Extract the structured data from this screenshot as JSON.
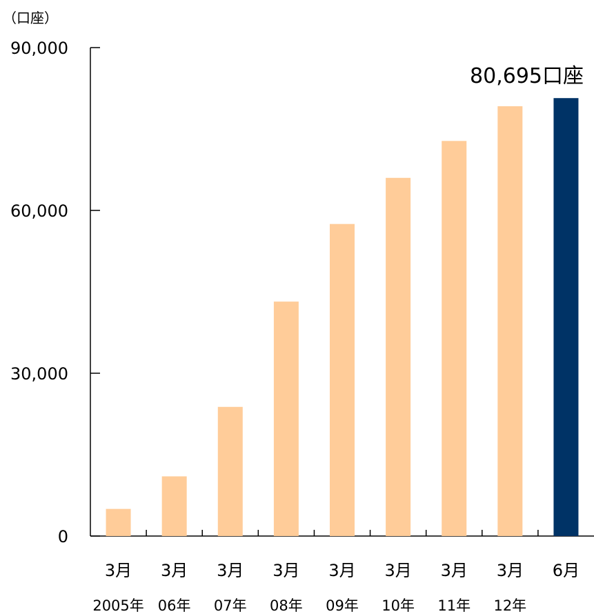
{
  "chart_data": {
    "type": "bar",
    "unit_label": "（口座）",
    "ylim": [
      0,
      90000
    ],
    "yticks": [
      "0",
      "30,000",
      "60,000",
      "90,000"
    ],
    "ytick_values": [
      0,
      30000,
      60000,
      90000
    ],
    "categories": [
      {
        "month": "3月",
        "year": "2005年"
      },
      {
        "month": "3月",
        "year": "06年"
      },
      {
        "month": "3月",
        "year": "07年"
      },
      {
        "month": "3月",
        "year": "08年"
      },
      {
        "month": "3月",
        "year": "09年"
      },
      {
        "month": "3月",
        "year": "10年"
      },
      {
        "month": "3月",
        "year": "11年"
      },
      {
        "month": "3月",
        "year": "12年"
      },
      {
        "month": "6月",
        "year": ""
      }
    ],
    "values": [
      5000,
      11000,
      23800,
      43200,
      57500,
      66000,
      72800,
      79200,
      80695
    ],
    "highlight_index": 8,
    "annotation": "80,695口座",
    "colors": {
      "bar": "#ffcc99",
      "highlight": "#003366",
      "axis": "#000000"
    }
  }
}
